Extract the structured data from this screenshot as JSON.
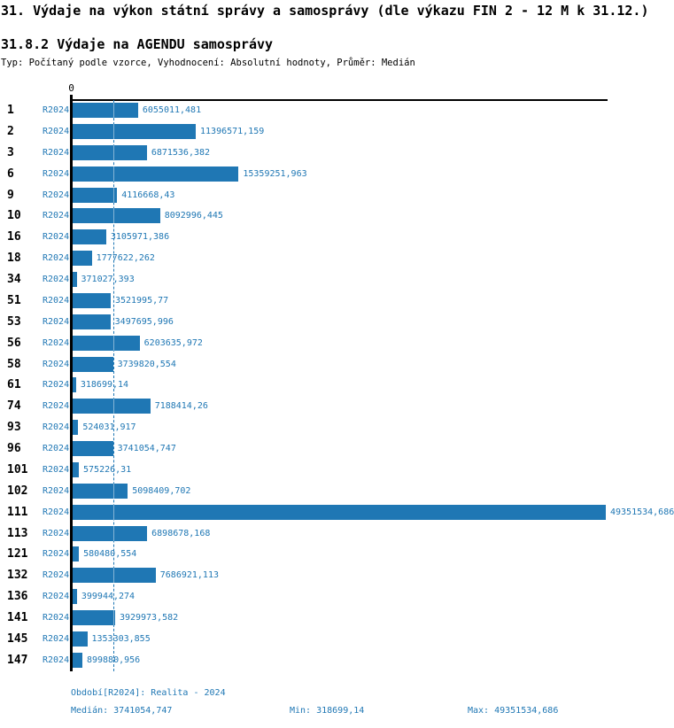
{
  "header": {
    "title": "31. Výdaje na výkon státní správy a samosprávy (dle výkazu FIN 2 - 12 M k 31.12.)",
    "subtitle": "31.8.2 Výdaje na AGENDU samosprávy",
    "meta": "Typ: Počítaný podle vzorce, Vyhodnocení: Absolutní hodnoty, Průměr: Medián"
  },
  "colors": {
    "bar": "#1f77b4",
    "accent_text": "#1f77b4",
    "axis": "#000000"
  },
  "chart_data": {
    "type": "bar",
    "orientation": "horizontal",
    "title": "31.8.2 Výdaje na AGENDU samosprávy",
    "series_name": "R2024",
    "categories": [
      "1",
      "2",
      "3",
      "6",
      "9",
      "10",
      "16",
      "18",
      "34",
      "51",
      "53",
      "56",
      "58",
      "61",
      "74",
      "93",
      "96",
      "101",
      "102",
      "111",
      "113",
      "121",
      "132",
      "136",
      "141",
      "145",
      "147"
    ],
    "values": [
      6055011.481,
      11396571.159,
      6871536.382,
      15359251.963,
      4116668.43,
      8092996.445,
      3105971.386,
      1777622.262,
      371027.393,
      3521995.77,
      3497695.996,
      6203635.972,
      3739820.554,
      318699.14,
      7188414.26,
      524031.917,
      3741054.747,
      575226.31,
      5098409.702,
      49351534.686,
      6898678.168,
      580480.554,
      7686921.113,
      399944.274,
      3929973.582,
      1353303.855,
      899880.956
    ],
    "value_labels": [
      "6055011,481",
      "11396571,159",
      "6871536,382",
      "15359251,963",
      "4116668,43",
      "8092996,445",
      "3105971,386",
      "1777622,262",
      "371027,393",
      "3521995,77",
      "3497695,996",
      "6203635,972",
      "3739820,554",
      "318699,14",
      "7188414,26",
      "524031,917",
      "3741054,747",
      "575226,31",
      "5098409,702",
      "49351534,686",
      "6898678,168",
      "580480,554",
      "7686921,113",
      "399944,274",
      "3929973,582",
      "1353303,855",
      "899880,956"
    ],
    "xlim": [
      0,
      49351534.686
    ],
    "zero_tick_label": "0",
    "median_value": 3741054.747,
    "median_line": true,
    "grid": false,
    "legend": false,
    "xlabel": "",
    "ylabel": ""
  },
  "footer": {
    "period": "Období[R2024]: Realita - 2024",
    "median": "Medián: 3741054,747",
    "min": "Min: 318699,14",
    "max": "Max: 49351534,686"
  }
}
